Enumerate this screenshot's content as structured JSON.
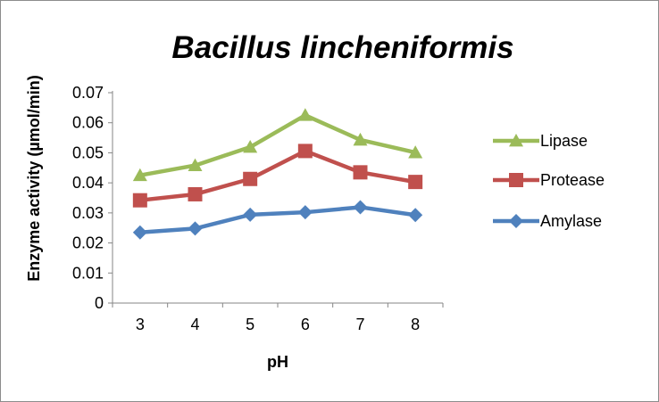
{
  "chart_data": {
    "type": "line",
    "title": "Bacillus lincheniformis",
    "xlabel": "pH",
    "ylabel": "Enzyme activity (µmol/min)",
    "categories": [
      "3",
      "4",
      "5",
      "6",
      "7",
      "8"
    ],
    "ylim": [
      0,
      0.07
    ],
    "y_ticks": [
      "0",
      "0.01",
      "0.02",
      "0.03",
      "0.04",
      "0.05",
      "0.06",
      "0.07"
    ],
    "grid": false,
    "legend_position": "right",
    "series": [
      {
        "name": "Lipase",
        "marker": "triangle",
        "color": "#9bbb59",
        "values": [
          0.0425,
          0.0458,
          0.0519,
          0.0625,
          0.0543,
          0.0501
        ]
      },
      {
        "name": "Protease",
        "marker": "square",
        "color": "#c0504d",
        "values": [
          0.0342,
          0.0362,
          0.0413,
          0.0506,
          0.0435,
          0.0403
        ]
      },
      {
        "name": "Amylase",
        "marker": "diamond",
        "color": "#4f81bd",
        "values": [
          0.0235,
          0.0248,
          0.0294,
          0.0302,
          0.0319,
          0.0293
        ]
      }
    ]
  }
}
